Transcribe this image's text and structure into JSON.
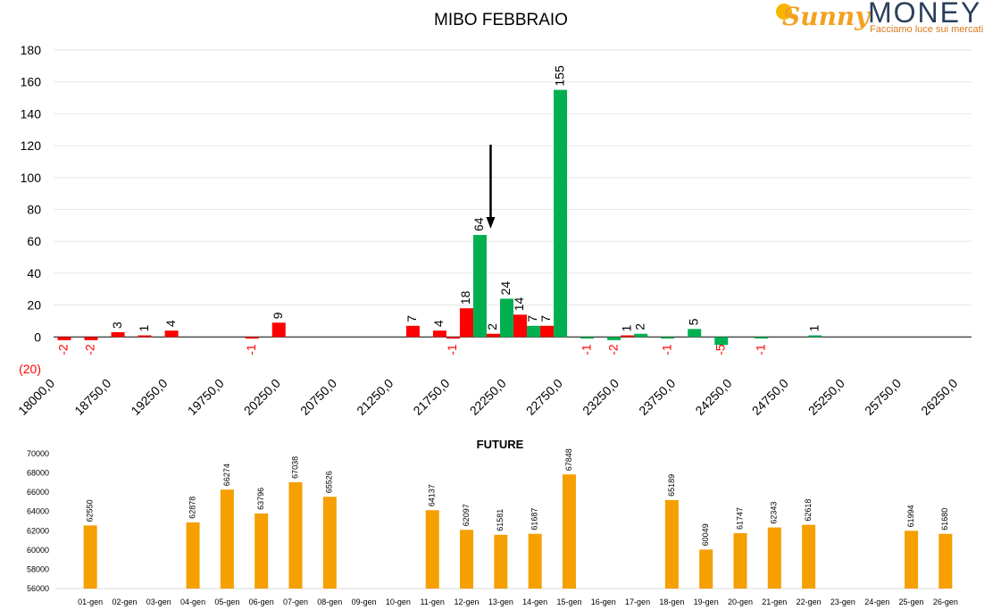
{
  "logo": {
    "script": "Sunny",
    "word": "MONEY",
    "tagline": "Facciamo luce sui mercati"
  },
  "colors": {
    "positive": "#00b050",
    "negative": "#ff0000",
    "future": "#f59f00",
    "axis": "#000000",
    "grid": "#e6e6e6"
  },
  "chart_data": [
    {
      "type": "bar",
      "title": "MIBO FEBBRAIO",
      "ylim": [
        -20,
        180
      ],
      "yticks": [
        "(20)",
        "0",
        "20",
        "40",
        "60",
        "80",
        "100",
        "120",
        "140",
        "160",
        "180"
      ],
      "xticks": [
        "18000,0",
        "18750,0",
        "19250,0",
        "19750,0",
        "20250,0",
        "20750,0",
        "21250,0",
        "21750,0",
        "22250,0",
        "22750,0",
        "23250,0",
        "23750,0",
        "24250,0",
        "24750,0",
        "25250,0",
        "25750,0",
        "26250,0"
      ],
      "arrow_at_strike": 21875,
      "series": [
        {
          "values": [
            {
              "x": 18000,
              "value": -2,
              "label": "-2",
              "color": "negative"
            },
            {
              "x": 18250,
              "value": -2,
              "label": "-2",
              "color": "negative"
            },
            {
              "x": 18500,
              "value": 3,
              "label": "3",
              "color": "negative"
            },
            {
              "x": 18750,
              "value": 1,
              "label": "1",
              "color": "negative"
            },
            {
              "x": 19000,
              "value": 4,
              "label": "4",
              "color": "negative"
            },
            {
              "x": 19750,
              "value": -1,
              "label": "-1",
              "color": "negative"
            },
            {
              "x": 20000,
              "value": 9,
              "label": "9",
              "color": "negative"
            },
            {
              "x": 21250,
              "value": 7,
              "label": "7",
              "color": "negative"
            },
            {
              "x": 21500,
              "value": 4,
              "label": "4",
              "color": "negative"
            },
            {
              "x": 21625,
              "value": -1,
              "label": "-1",
              "color": "negative"
            },
            {
              "x": 21750,
              "value": 18,
              "label": "18",
              "color": "negative"
            },
            {
              "x": 21875,
              "value": 64,
              "label": "64",
              "color": "positive"
            },
            {
              "x": 22000,
              "value": 2,
              "label": "2",
              "color": "negative"
            },
            {
              "x": 22125,
              "value": 24,
              "label": "24",
              "color": "positive"
            },
            {
              "x": 22250,
              "value": 14,
              "label": "14",
              "color": "negative"
            },
            {
              "x": 22375,
              "value": 7,
              "label": "7",
              "color": "positive"
            },
            {
              "x": 22500,
              "value": 7,
              "label": "7",
              "color": "negative"
            },
            {
              "x": 22625,
              "value": 155,
              "label": "155",
              "color": "positive"
            },
            {
              "x": 22875,
              "value": -1,
              "label": "-1",
              "color": "positive"
            },
            {
              "x": 23125,
              "value": -2,
              "label": "-2",
              "color": "positive"
            },
            {
              "x": 23250,
              "value": 1,
              "label": "1",
              "color": "negative"
            },
            {
              "x": 23375,
              "value": 2,
              "label": "2",
              "color": "positive"
            },
            {
              "x": 23625,
              "value": -1,
              "label": "-1",
              "color": "positive"
            },
            {
              "x": 23875,
              "value": 5,
              "label": "5",
              "color": "positive"
            },
            {
              "x": 24125,
              "value": -5,
              "label": "-5",
              "color": "positive"
            },
            {
              "x": 24500,
              "value": -1,
              "label": "-1",
              "color": "positive"
            },
            {
              "x": 25000,
              "value": 1,
              "label": "1",
              "color": "positive"
            }
          ]
        }
      ]
    },
    {
      "type": "bar",
      "title": "FUTURE",
      "ylim": [
        56000,
        70000
      ],
      "yticks": [
        "56000",
        "58000",
        "60000",
        "62000",
        "64000",
        "66000",
        "68000",
        "70000"
      ],
      "categories": [
        "01-gen",
        "02-gen",
        "03-gen",
        "04-gen",
        "05-gen",
        "06-gen",
        "07-gen",
        "08-gen",
        "09-gen",
        "10-gen",
        "11-gen",
        "12-gen",
        "13-gen",
        "14-gen",
        "15-gen",
        "16-gen",
        "17-gen",
        "18-gen",
        "19-gen",
        "20-gen",
        "21-gen",
        "22-gen",
        "23-gen",
        "24-gen",
        "25-gen",
        "26-gen"
      ],
      "values": [
        62550,
        null,
        null,
        62878,
        66274,
        63796,
        67038,
        65526,
        null,
        null,
        64137,
        62097,
        61581,
        61687,
        67848,
        null,
        null,
        65189,
        60049,
        61747,
        62343,
        62618,
        null,
        null,
        61994,
        61680
      ]
    }
  ]
}
